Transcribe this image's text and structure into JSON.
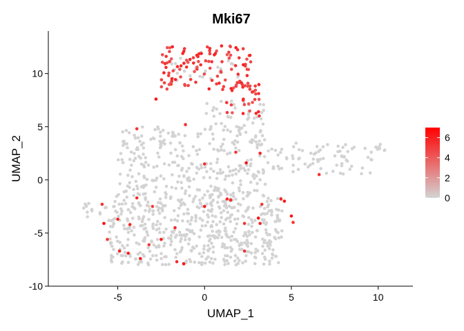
{
  "chart_data": {
    "type": "scatter",
    "title": "Mki67",
    "xlabel": "UMAP_1",
    "ylabel": "UMAP_2",
    "xlim": [
      -9,
      12
    ],
    "ylim": [
      -10,
      14
    ],
    "xticks": [
      -5,
      0,
      5,
      10
    ],
    "yticks": [
      -10,
      -5,
      0,
      5,
      10
    ],
    "x_tick_labels": [
      "-5",
      "0",
      "5",
      "10"
    ],
    "y_tick_labels": [
      "-10",
      "-5",
      "0",
      "5",
      "10"
    ],
    "grid": false,
    "legend": {
      "placement": "right",
      "kind": "colorbar",
      "range": [
        0,
        7
      ],
      "ticks": [
        0,
        2,
        4,
        6
      ],
      "tick_labels": [
        "0",
        "2",
        "4",
        "6"
      ],
      "low_color": "#d3d3d3",
      "high_color": "#ff0000"
    },
    "point_groups": [
      {
        "expression": 0,
        "description": "non-expressing cells (approximate point cloud)",
        "regions": [
          {
            "x": [
              -5.5,
              4.5
            ],
            "y": [
              -8,
              -1.5
            ],
            "count": 520
          },
          {
            "x": [
              -5,
              3.5
            ],
            "y": [
              -1.5,
              5
            ],
            "count": 300
          },
          {
            "x": [
              0,
              3.5
            ],
            "y": [
              5,
              7.5
            ],
            "count": 35
          },
          {
            "x": [
              3.5,
              4.8
            ],
            "y": [
              1,
              3
            ],
            "count": 15
          },
          {
            "x": [
              5,
              10.5
            ],
            "y": [
              0.5,
              3.5
            ],
            "count": 70
          },
          {
            "x": [
              -2,
              2
            ],
            "y": [
              9,
              12
            ],
            "count": 25
          },
          {
            "x": [
              -7,
              -5.5
            ],
            "y": [
              -4,
              -2
            ],
            "count": 15
          }
        ]
      },
      {
        "expression": 6,
        "description": "high-expressing cells (approximate point cloud)",
        "regions": [
          {
            "x": [
              -2.5,
              2.7
            ],
            "y": [
              8.5,
              12.6
            ],
            "count": 110
          },
          {
            "x": [
              1,
              3.2
            ],
            "y": [
              6,
              9
            ],
            "count": 30
          }
        ]
      }
    ],
    "scattered_expressing_points": [
      [
        -3.9,
        4.8
      ],
      [
        -2.8,
        7.6
      ],
      [
        -1.1,
        5.2
      ],
      [
        0.0,
        1.5
      ],
      [
        1.8,
        2.6
      ],
      [
        2.4,
        1.6
      ],
      [
        3.2,
        2.5
      ],
      [
        -3.9,
        -1.7
      ],
      [
        -3.0,
        -2.5
      ],
      [
        -5.9,
        -2.3
      ],
      [
        -5.0,
        -3.7
      ],
      [
        -5.8,
        -4.1
      ],
      [
        -5.6,
        -5.6
      ],
      [
        -4.9,
        -6.7
      ],
      [
        -4.4,
        -6.9
      ],
      [
        -3.7,
        -7.4
      ],
      [
        -3.2,
        -6.1
      ],
      [
        -2.5,
        -5.6
      ],
      [
        -1.6,
        -7.7
      ],
      [
        -1.2,
        -7.9
      ],
      [
        0.0,
        -2.5
      ],
      [
        1.3,
        -1.8
      ],
      [
        1.5,
        -1.9
      ],
      [
        2.3,
        -4.1
      ],
      [
        2.3,
        -6.7
      ],
      [
        3.1,
        -3.6
      ],
      [
        3.2,
        -4.1
      ],
      [
        3.3,
        -2.3
      ],
      [
        4.4,
        -1.8
      ],
      [
        4.6,
        -2.0
      ],
      [
        5.0,
        -3.4
      ],
      [
        5.1,
        -4.0
      ],
      [
        6.6,
        0.5
      ],
      [
        -1.7,
        -4.5
      ],
      [
        -4.3,
        -4.2
      ]
    ]
  }
}
